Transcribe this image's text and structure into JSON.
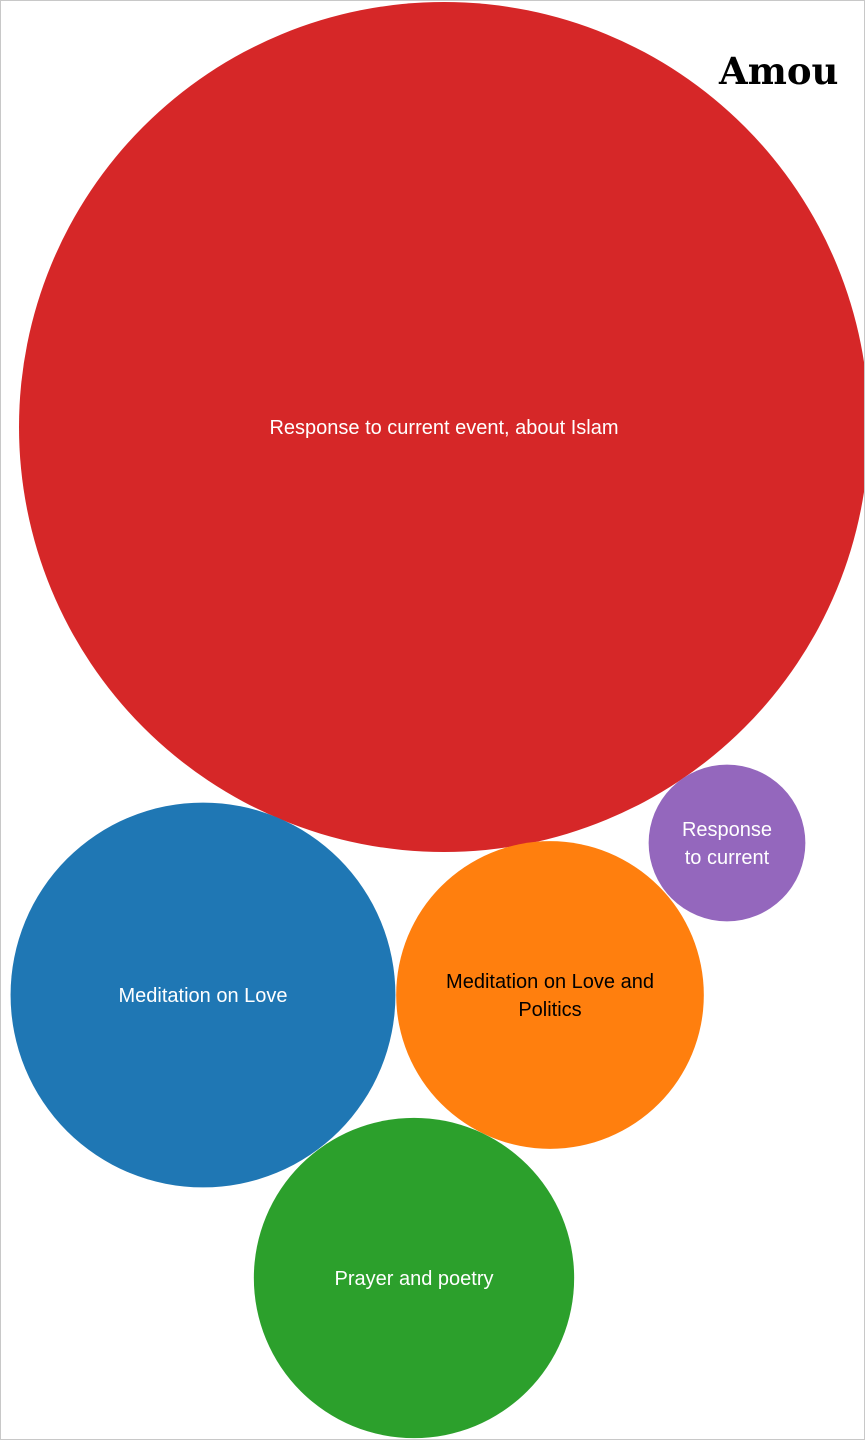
{
  "title": "Amou",
  "chart_data": {
    "type": "bubble",
    "title": "Amou",
    "bubbles": [
      {
        "label": "Response to current event, about Islam",
        "lines": [
          "Response to current event, about Islam"
        ],
        "value": 100,
        "color": "#d62728",
        "text_color": "#ffffff"
      },
      {
        "label": "Meditation on Love",
        "lines": [
          "Meditation on Love"
        ],
        "value": 20.5,
        "color": "#1f77b4",
        "text_color": "#ffffff"
      },
      {
        "label": "Meditation on Love and Politics",
        "lines": [
          "Meditation on Love and",
          "Politics"
        ],
        "value": 13.1,
        "color": "#ff7f0e",
        "text_color": "#000000"
      },
      {
        "label": "Prayer and poetry",
        "lines": [
          "Prayer and poetry"
        ],
        "value": 14.2,
        "color": "#2ca02c",
        "text_color": "#ffffff"
      },
      {
        "label": "Response to current",
        "lines": [
          "Response",
          "to current"
        ],
        "value": 3.4,
        "color": "#9467bd",
        "text_color": "#ffffff"
      }
    ]
  }
}
